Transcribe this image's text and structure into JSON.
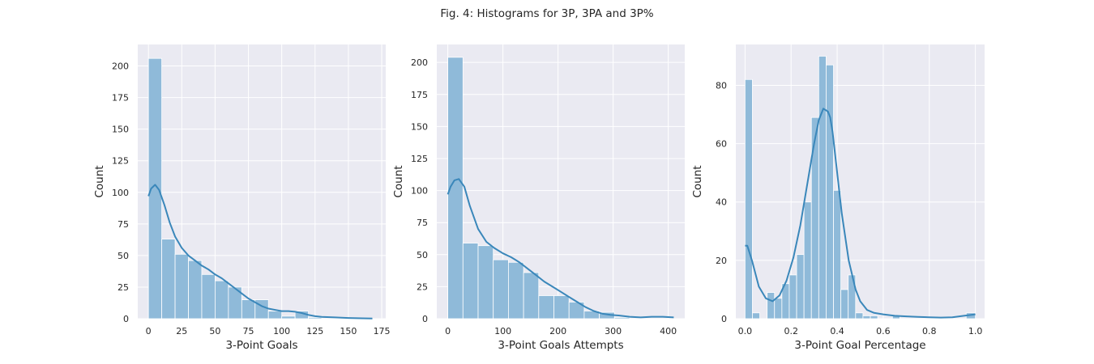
{
  "figure": {
    "title": "Fig. 4: Histograms for 3P, 3PA and 3P%"
  },
  "style": {
    "background": "#EAEAF2",
    "grid": "#FFFFFF",
    "bar_fill": "#8FBAD9",
    "bar_edge": "#FFFFFF",
    "kde_line": "#3A87BA"
  },
  "chart_data": [
    {
      "type": "bar",
      "subtype": "histogram_with_kde",
      "title": "",
      "xlabel": "3-Point Goals",
      "ylabel": "Count",
      "xlim": [
        -8,
        178
      ],
      "ylim": [
        0,
        217
      ],
      "xticks": [
        0,
        25,
        50,
        75,
        100,
        125,
        150,
        175
      ],
      "yticks": [
        0,
        25,
        50,
        75,
        100,
        125,
        150,
        175,
        200
      ],
      "grid": true,
      "bins": [
        {
          "x0": 0,
          "x1": 10,
          "count": 206
        },
        {
          "x0": 10,
          "x1": 20,
          "count": 63
        },
        {
          "x0": 20,
          "x1": 30,
          "count": 51
        },
        {
          "x0": 30,
          "x1": 40,
          "count": 46
        },
        {
          "x0": 40,
          "x1": 50,
          "count": 35
        },
        {
          "x0": 50,
          "x1": 60,
          "count": 30
        },
        {
          "x0": 60,
          "x1": 70,
          "count": 25
        },
        {
          "x0": 70,
          "x1": 80,
          "count": 15
        },
        {
          "x0": 80,
          "x1": 90,
          "count": 15
        },
        {
          "x0": 90,
          "x1": 100,
          "count": 6
        },
        {
          "x0": 100,
          "x1": 110,
          "count": 2
        },
        {
          "x0": 110,
          "x1": 120,
          "count": 6
        },
        {
          "x0": 120,
          "x1": 130,
          "count": 1
        }
      ],
      "kde": {
        "x": [
          0,
          2,
          5,
          8,
          12,
          16,
          20,
          25,
          30,
          35,
          40,
          45,
          50,
          55,
          60,
          65,
          70,
          75,
          80,
          85,
          90,
          95,
          100,
          105,
          110,
          115,
          120,
          125,
          130,
          140,
          150,
          160,
          168
        ],
        "y": [
          97,
          103,
          106,
          102,
          90,
          76,
          65,
          56,
          50,
          46,
          42,
          39,
          35,
          32,
          28,
          24,
          20,
          16,
          13,
          10,
          8,
          7,
          6,
          6,
          5.5,
          4.5,
          3,
          2,
          1.5,
          1,
          0.6,
          0.3,
          0.2
        ]
      }
    },
    {
      "type": "bar",
      "subtype": "histogram_with_kde",
      "title": "",
      "xlabel": "3-Point Goals Attempts",
      "ylabel": "Count",
      "xlim": [
        -20,
        430
      ],
      "ylim": [
        0,
        214
      ],
      "xticks": [
        0,
        100,
        200,
        300,
        400
      ],
      "yticks": [
        0,
        25,
        50,
        75,
        100,
        125,
        150,
        175,
        200
      ],
      "grid": true,
      "bins": [
        {
          "x0": 0,
          "x1": 27.5,
          "count": 204
        },
        {
          "x0": 27.5,
          "x1": 55,
          "count": 59
        },
        {
          "x0": 55,
          "x1": 82.5,
          "count": 57
        },
        {
          "x0": 82.5,
          "x1": 110,
          "count": 46
        },
        {
          "x0": 110,
          "x1": 137.5,
          "count": 44
        },
        {
          "x0": 137.5,
          "x1": 165,
          "count": 36
        },
        {
          "x0": 165,
          "x1": 192.5,
          "count": 18
        },
        {
          "x0": 192.5,
          "x1": 220,
          "count": 18
        },
        {
          "x0": 220,
          "x1": 247.5,
          "count": 13
        },
        {
          "x0": 247.5,
          "x1": 275,
          "count": 6
        },
        {
          "x0": 275,
          "x1": 302.5,
          "count": 5
        },
        {
          "x0": 302.5,
          "x1": 330,
          "count": 1
        }
      ],
      "kde": {
        "x": [
          0,
          5,
          12,
          20,
          30,
          40,
          55,
          70,
          85,
          100,
          115,
          130,
          145,
          160,
          175,
          190,
          205,
          220,
          235,
          250,
          265,
          280,
          295,
          310,
          330,
          350,
          370,
          390,
          410
        ],
        "y": [
          97,
          103,
          108,
          109,
          103,
          88,
          70,
          60,
          55,
          51,
          48,
          44,
          39,
          34,
          29,
          25,
          21,
          17,
          13,
          9,
          6,
          4,
          3,
          2.5,
          1.5,
          1,
          1.5,
          1.5,
          1
        ]
      }
    },
    {
      "type": "bar",
      "subtype": "histogram_with_kde",
      "title": "",
      "xlabel": "3-Point Goal Percentage",
      "ylabel": "Count",
      "xlim": [
        -0.04,
        1.04
      ],
      "ylim": [
        0,
        94
      ],
      "xticks": [
        0.0,
        0.2,
        0.4,
        0.6,
        0.8,
        1.0
      ],
      "xtick_labels": [
        "0.0",
        "0.2",
        "0.4",
        "0.6",
        "0.8",
        "1.0"
      ],
      "yticks": [
        0,
        20,
        40,
        60,
        80
      ],
      "grid": true,
      "bins": [
        {
          "x0": 0.0,
          "x1": 0.032,
          "count": 82
        },
        {
          "x0": 0.032,
          "x1": 0.064,
          "count": 2
        },
        {
          "x0": 0.064,
          "x1": 0.096,
          "count": 0
        },
        {
          "x0": 0.096,
          "x1": 0.128,
          "count": 9
        },
        {
          "x0": 0.128,
          "x1": 0.16,
          "count": 7
        },
        {
          "x0": 0.16,
          "x1": 0.192,
          "count": 12
        },
        {
          "x0": 0.192,
          "x1": 0.224,
          "count": 15
        },
        {
          "x0": 0.224,
          "x1": 0.256,
          "count": 22
        },
        {
          "x0": 0.256,
          "x1": 0.288,
          "count": 40
        },
        {
          "x0": 0.288,
          "x1": 0.32,
          "count": 69
        },
        {
          "x0": 0.32,
          "x1": 0.352,
          "count": 90
        },
        {
          "x0": 0.352,
          "x1": 0.384,
          "count": 87
        },
        {
          "x0": 0.384,
          "x1": 0.416,
          "count": 44
        },
        {
          "x0": 0.416,
          "x1": 0.448,
          "count": 10
        },
        {
          "x0": 0.448,
          "x1": 0.48,
          "count": 15
        },
        {
          "x0": 0.48,
          "x1": 0.512,
          "count": 2
        },
        {
          "x0": 0.512,
          "x1": 0.544,
          "count": 1
        },
        {
          "x0": 0.544,
          "x1": 0.576,
          "count": 1
        },
        {
          "x0": 0.576,
          "x1": 0.608,
          "count": 0
        },
        {
          "x0": 0.608,
          "x1": 0.64,
          "count": 0
        },
        {
          "x0": 0.64,
          "x1": 0.672,
          "count": 1
        },
        {
          "x0": 0.96,
          "x1": 1.0,
          "count": 2
        }
      ],
      "kde": {
        "x": [
          0.0,
          0.01,
          0.03,
          0.06,
          0.09,
          0.12,
          0.15,
          0.18,
          0.21,
          0.24,
          0.27,
          0.3,
          0.32,
          0.34,
          0.36,
          0.37,
          0.38,
          0.4,
          0.42,
          0.45,
          0.48,
          0.5,
          0.53,
          0.56,
          0.6,
          0.65,
          0.7,
          0.75,
          0.8,
          0.85,
          0.9,
          0.95,
          1.0
        ],
        "y": [
          25,
          25,
          20,
          11,
          7,
          6,
          8,
          13,
          21,
          32,
          46,
          60,
          68,
          72,
          71,
          69,
          64,
          50,
          36,
          20,
          10,
          6,
          3,
          2,
          1.5,
          1,
          0.8,
          0.6,
          0.5,
          0.4,
          0.5,
          1,
          1.5
        ]
      }
    }
  ]
}
